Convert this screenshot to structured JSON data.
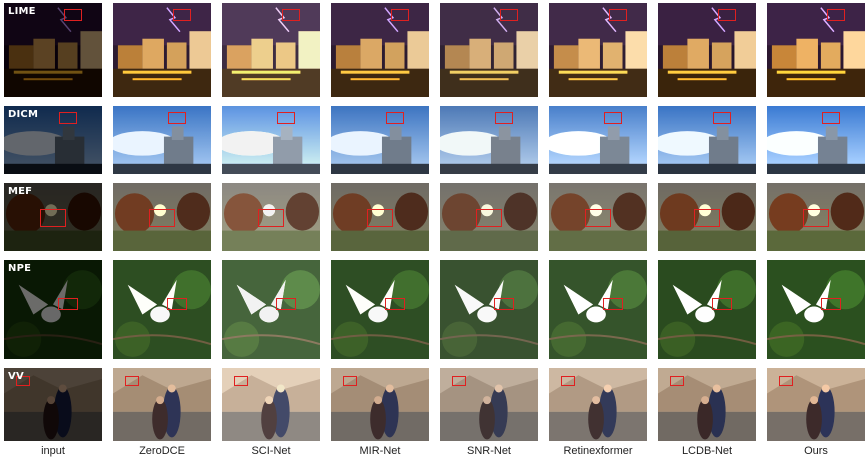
{
  "columns": [
    "input",
    "ZeroDCE",
    "SCI-Net",
    "MIR-Net",
    "SNR-Net",
    "Retinexformer",
    "LCDB-Net",
    "Ours"
  ],
  "rows": [
    {
      "label": "LIME",
      "scene": "city-night"
    },
    {
      "label": "DICM",
      "scene": "sky-building"
    },
    {
      "label": "MEF",
      "scene": "balloons-sunset"
    },
    {
      "label": "NPE",
      "scene": "bird-foliage"
    },
    {
      "label": "VV",
      "scene": "couple-mountain"
    }
  ],
  "colors": {
    "box": "#e02020"
  }
}
